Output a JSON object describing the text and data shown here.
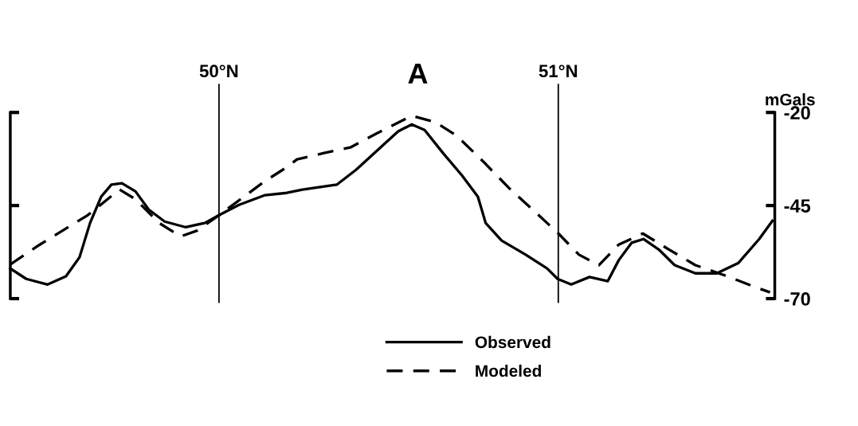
{
  "chart_data": {
    "type": "line",
    "title": "A",
    "ylabel": "mGals",
    "xlim": [
      49.385,
      51.638
    ],
    "ylim": [
      -70,
      -20
    ],
    "yticks": [
      -20,
      -45,
      -70
    ],
    "tick_labels": "y",
    "grid": false,
    "legend": "bottom",
    "marker": "none",
    "ref_lines": [
      {
        "axis": "x",
        "value": 50,
        "label": "50°N",
        "color": "#000000",
        "line_style": "solid"
      },
      {
        "axis": "x",
        "value": 51,
        "label": "51°N",
        "color": "#000000",
        "line_style": "solid"
      }
    ],
    "series": [
      {
        "name": "Observed",
        "color": "#000000",
        "line_style": "solid",
        "x": [
          49.385,
          49.432,
          49.495,
          49.549,
          49.589,
          49.62,
          49.653,
          49.683,
          49.714,
          49.754,
          49.793,
          49.84,
          49.901,
          49.958,
          50.0,
          50.059,
          50.136,
          50.2,
          50.246,
          50.347,
          50.404,
          50.481,
          50.528,
          50.568,
          50.606,
          50.662,
          50.716,
          50.763,
          50.786,
          50.833,
          50.904,
          50.967,
          50.998,
          51.038,
          51.092,
          51.146,
          51.178,
          51.216,
          51.251,
          51.296,
          51.343,
          51.404,
          51.467,
          51.531,
          51.592,
          51.631
        ],
        "values": [
          -61.9,
          -64.7,
          -66.2,
          -64.0,
          -58.9,
          -49.7,
          -42.6,
          -39.4,
          -39.0,
          -41.2,
          -46.1,
          -49.3,
          -50.8,
          -49.7,
          -47.6,
          -44.8,
          -42.2,
          -41.6,
          -40.7,
          -39.4,
          -35.4,
          -29.0,
          -25.1,
          -23.2,
          -24.7,
          -31.1,
          -36.9,
          -42.6,
          -49.7,
          -54.4,
          -58.2,
          -61.9,
          -64.7,
          -66.2,
          -64.2,
          -65.3,
          -59.7,
          -55.0,
          -54.0,
          -56.8,
          -61.0,
          -63.2,
          -63.2,
          -60.4,
          -54.0,
          -49.1
        ]
      },
      {
        "name": "Modeled",
        "color": "#000000",
        "line_style": "dashed",
        "x": [
          49.385,
          49.472,
          49.613,
          49.707,
          49.754,
          49.824,
          49.887,
          49.934,
          50.0,
          50.136,
          50.2,
          50.23,
          50.31,
          50.387,
          50.465,
          50.568,
          50.638,
          50.7,
          50.779,
          50.857,
          50.934,
          50.998,
          51.061,
          51.12,
          51.178,
          51.249,
          51.326,
          51.404,
          51.498,
          51.577,
          51.624
        ],
        "values": [
          -60.8,
          -55.5,
          -47.6,
          -40.7,
          -43.3,
          -49.7,
          -53.3,
          -51.8,
          -47.6,
          -38.4,
          -34.7,
          -32.6,
          -30.9,
          -29.4,
          -25.6,
          -20.9,
          -22.6,
          -26.2,
          -33.2,
          -40.5,
          -46.9,
          -52.3,
          -58.2,
          -61.0,
          -55.5,
          -52.5,
          -56.8,
          -61.0,
          -64.0,
          -66.8,
          -68.3
        ]
      }
    ]
  }
}
